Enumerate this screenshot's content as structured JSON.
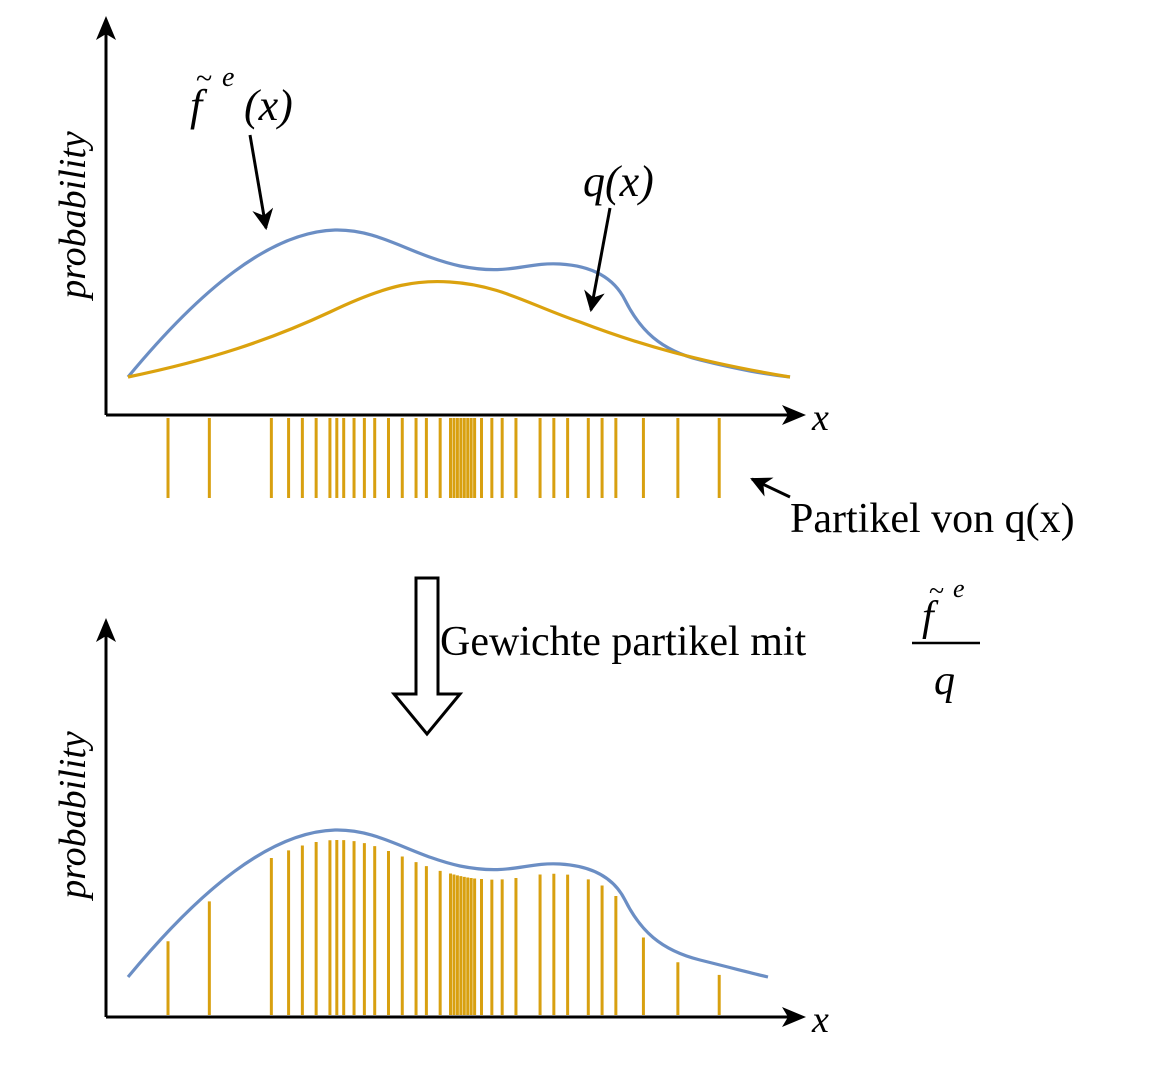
{
  "top_panel": {
    "ylabel": "probability",
    "xlabel": "x",
    "f_label": {
      "base": "f",
      "sup": "e",
      "arg": "(x)"
    },
    "q_label": "q(x)",
    "particles_label": "Partikel von q(x)"
  },
  "transition": {
    "text": "Gewichte partikel mit",
    "frac_num": {
      "base": "f",
      "sup": "e"
    },
    "frac_den": "q"
  },
  "bottom_panel": {
    "ylabel": "probability",
    "xlabel": "x"
  },
  "colors": {
    "f_curve": "#6b8ec4",
    "q_curve": "#dba20e",
    "particles": "#d8a010",
    "axes": "#000000"
  },
  "particles_x": [
    0.09,
    0.15,
    0.24,
    0.265,
    0.285,
    0.305,
    0.325,
    0.335,
    0.345,
    0.36,
    0.375,
    0.39,
    0.41,
    0.43,
    0.45,
    0.465,
    0.485,
    0.5,
    0.505,
    0.51,
    0.515,
    0.52,
    0.525,
    0.53,
    0.535,
    0.545,
    0.56,
    0.575,
    0.595,
    0.63,
    0.65,
    0.67,
    0.7,
    0.72,
    0.74,
    0.78,
    0.83,
    0.89
  ]
}
